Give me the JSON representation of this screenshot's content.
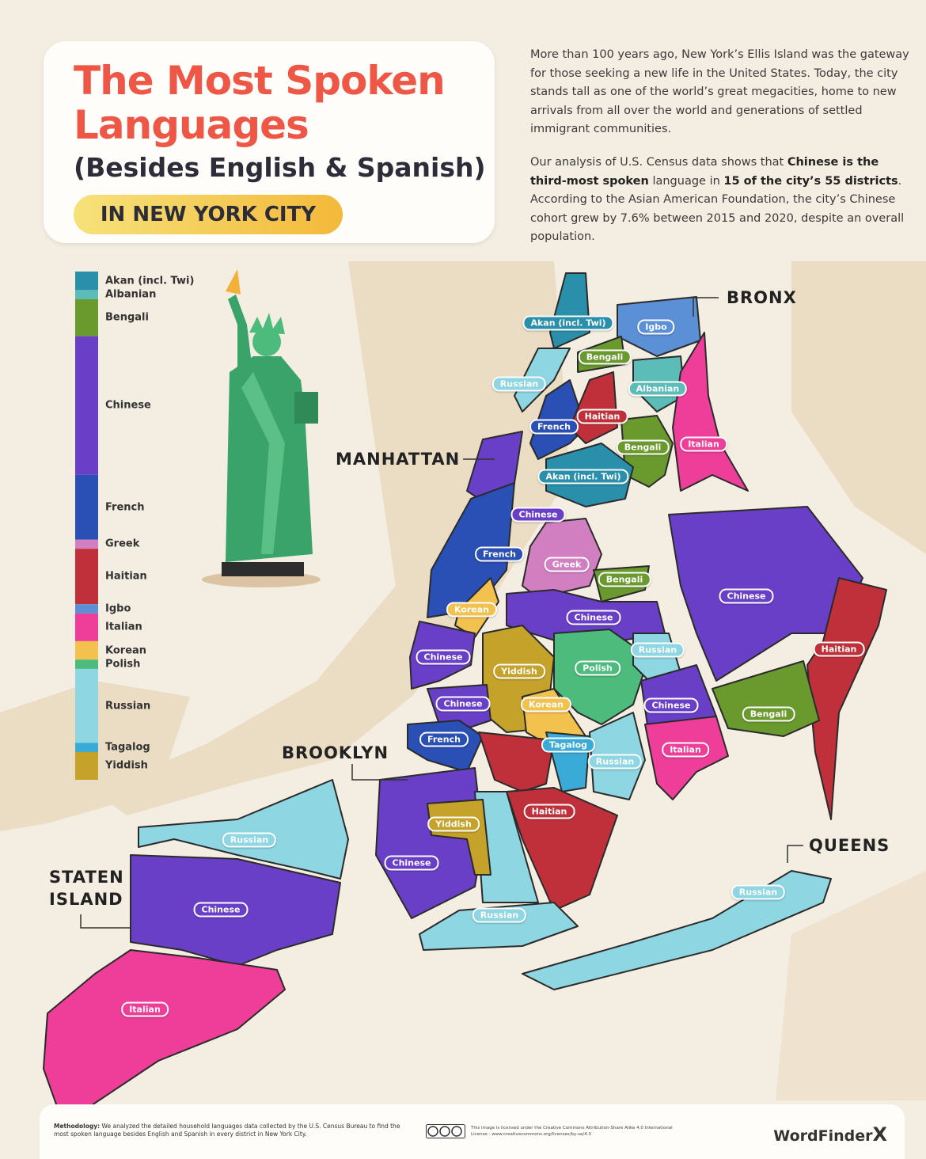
{
  "header": {
    "title_line1": "The Most Spoken",
    "title_line2": "Languages",
    "subtitle": "(Besides English & Spanish)",
    "tag": "IN NEW YORK CITY"
  },
  "intro": {
    "paragraph1": "More than 100 years ago, New York’s Ellis Island was the gateway for those seeking a new life in the United States. Today, the city stands tall as one of the world’s great megacities, home to new arrivals from all over the world and generations of settled immigrant communities.",
    "paragraph2": [
      {
        "text": "Our analysis of U.S. Census data shows that ",
        "bold": false
      },
      {
        "text": "Chinese is the third-most spoken",
        "bold": true
      },
      {
        "text": " language in ",
        "bold": false
      },
      {
        "text": "15 of the city’s 55 districts",
        "bold": true
      },
      {
        "text": ". According to the Asian American Foundation, the city’s Chinese cohort grew by 7.6% between 2015 and 2020, despite an overall population.",
        "bold": false
      }
    ]
  },
  "legend": {
    "items": [
      {
        "name": "Akan (incl. Twi)",
        "color": "#2a8fab",
        "districts": 2
      },
      {
        "name": "Albanian",
        "color": "#5bbcb8",
        "districts": 1
      },
      {
        "name": "Bengali",
        "color": "#6a9a2e",
        "districts": 4
      },
      {
        "name": "Chinese",
        "color": "#6a3fc8",
        "districts": 15
      },
      {
        "name": "French",
        "color": "#2a4fb5",
        "districts": 7
      },
      {
        "name": "Greek",
        "color": "#d17fc0",
        "districts": 1
      },
      {
        "name": "Haitian",
        "color": "#c0303a",
        "districts": 6
      },
      {
        "name": "Igbo",
        "color": "#5b8fd6",
        "districts": 1
      },
      {
        "name": "Italian",
        "color": "#ee3e9a",
        "districts": 3
      },
      {
        "name": "Korean",
        "color": "#f2c14e",
        "districts": 2
      },
      {
        "name": "Polish",
        "color": "#4cbb7c",
        "districts": 1
      },
      {
        "name": "Russian",
        "color": "#8dd6e2",
        "districts": 8
      },
      {
        "name": "Tagalog",
        "color": "#3aabd6",
        "districts": 1
      },
      {
        "name": "Yiddish",
        "color": "#c5a22a",
        "districts": 3
      }
    ]
  },
  "boroughs": [
    "BRONX",
    "MANHATTAN",
    "BROOKLYN",
    "QUEENS",
    "STATEN ISLAND"
  ],
  "district_labels": [
    "Akan (incl. Twi)",
    "Igbo",
    "Bengali",
    "Russian",
    "Albanian",
    "Haitian",
    "French",
    "Bengali",
    "Italian",
    "Akan (incl. Twi)",
    "Chinese",
    "French",
    "Greek",
    "Bengali",
    "Chinese",
    "Korean",
    "Chinese",
    "Russian",
    "Haitian",
    "Chinese",
    "Polish",
    "Yiddish",
    "Chinese",
    "Korean",
    "Chinese",
    "Bengali",
    "French",
    "Tagalog",
    "Italian",
    "Russian",
    "Haitian",
    "Yiddish",
    "Russian",
    "Chinese",
    "Russian",
    "Chinese",
    "Russian",
    "Italian"
  ],
  "footer": {
    "methodology_label": "Methodology:",
    "methodology": " We analyzed the detailed household languages data collected by the U.S. Census Bureau to find the most spoken language besides English and Spanish in every district in New York City.",
    "license": "This image is licensed under the Creative Commons Attribution-Share Alike 4.0 International License - www.creativecommons.org/licenses/by-sa/4.0",
    "brand": "WordFinder",
    "brand_mark": "X"
  }
}
